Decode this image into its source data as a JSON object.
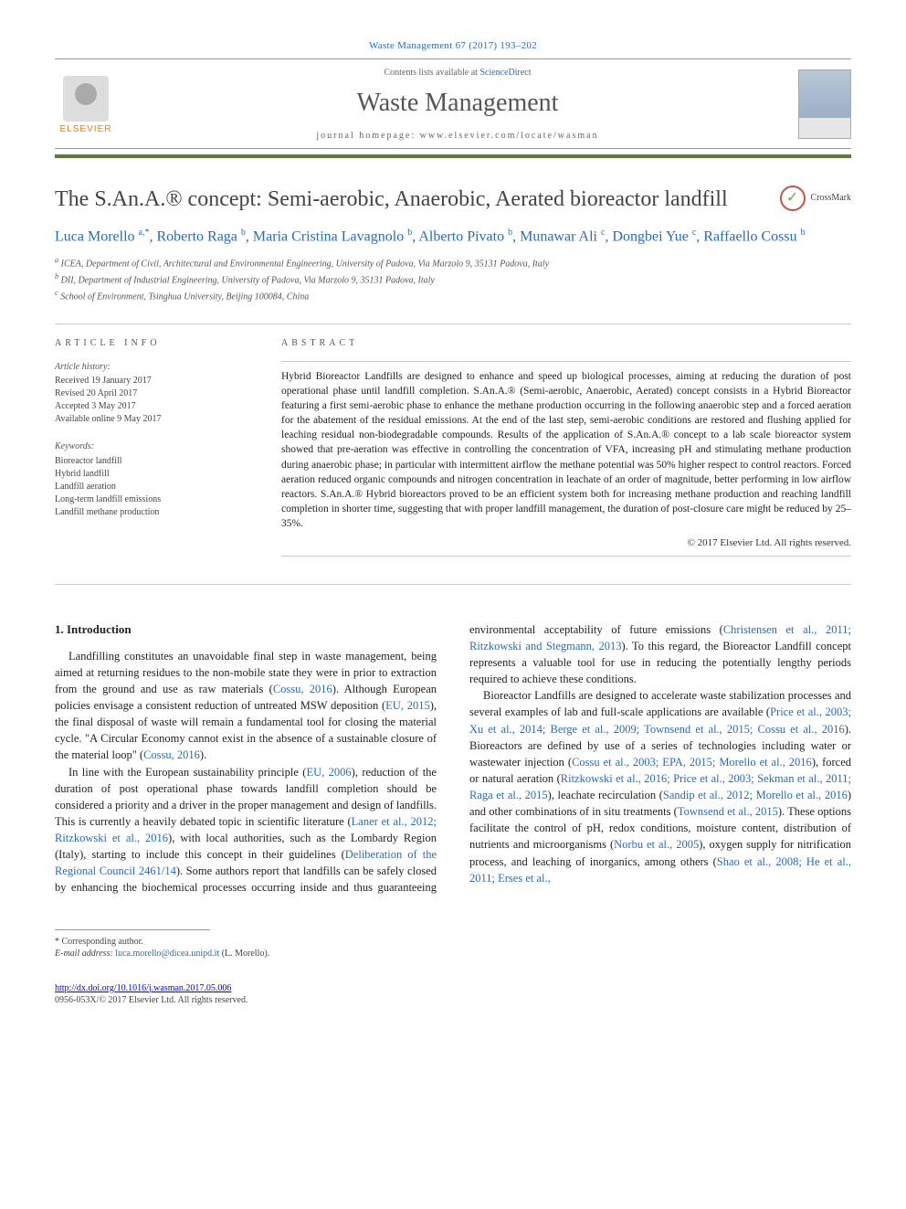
{
  "colors": {
    "link": "#2a6bb8",
    "accent_bar": "#5a7a3a",
    "elsevier_orange": "#ec7a08",
    "text_body": "#222222",
    "text_muted": "#666666",
    "rule_gray": "#cccccc"
  },
  "typography": {
    "body_font": "Georgia, serif",
    "title_fontsize_pt": 18,
    "journal_name_fontsize_pt": 21,
    "authors_fontsize_pt": 12,
    "abstract_fontsize_pt": 9,
    "body_fontsize_pt": 9.5
  },
  "header": {
    "citation": "Waste Management 67 (2017) 193–202",
    "contents_line_pre": "Contents lists available at ",
    "contents_line_link": "ScienceDirect",
    "journal_name": "Waste Management",
    "homepage_label": "journal homepage: www.elsevier.com/locate/wasman",
    "elsevier_label": "ELSEVIER"
  },
  "title": "The S.An.A.® concept: Semi-aerobic, Anaerobic, Aerated bioreactor landfill",
  "crossmark_label": "CrossMark",
  "authors_html": "Luca Morello <sup>a,*</sup>, Roberto Raga <sup>b</sup>, Maria Cristina Lavagnolo <sup>b</sup>, Alberto Pivato <sup>b</sup>, Munawar Ali <sup>c</sup>, Dongbei Yue <sup>c</sup>, Raffaello Cossu <sup>b</sup>",
  "affiliations": [
    "a ICEA, Department of Civil, Architectural and Environmental Engineering, University of Padova, Via Marzolo 9, 35131 Padova, Italy",
    "b DII, Department of Industrial Engineering, University of Padova, Via Marzolo 9, 35131 Padova, Italy",
    "c School of Environment, Tsinghua University, Beijing 100084, China"
  ],
  "article_info": {
    "heading": "ARTICLE INFO",
    "history_heading": "Article history:",
    "history_lines": [
      "Received 19 January 2017",
      "Revised 20 April 2017",
      "Accepted 3 May 2017",
      "Available online 9 May 2017"
    ],
    "keywords_heading": "Keywords:",
    "keywords": [
      "Bioreactor landfill",
      "Hybrid landfill",
      "Landfill aeration",
      "Long-term landfill emissions",
      "Landfill methane production"
    ]
  },
  "abstract": {
    "heading": "ABSTRACT",
    "text": "Hybrid Bioreactor Landfills are designed to enhance and speed up biological processes, aiming at reducing the duration of post operational phase until landfill completion. S.An.A.® (Semi-aerobic, Anaerobic, Aerated) concept consists in a Hybrid Bioreactor featuring a first semi-aerobic phase to enhance the methane production occurring in the following anaerobic step and a forced aeration for the abatement of the residual emissions. At the end of the last step, semi-aerobic conditions are restored and flushing applied for leaching residual non-biodegradable compounds. Results of the application of S.An.A.® concept to a lab scale bioreactor system showed that pre-aeration was effective in controlling the concentration of VFA, increasing pH and stimulating methane production during anaerobic phase; in particular with intermittent airflow the methane potential was 50% higher respect to control reactors. Forced aeration reduced organic compounds and nitrogen concentration in leachate of an order of magnitude, better performing in low airflow reactors. S.An.A.® Hybrid bioreactors proved to be an efficient system both for increasing methane production and reaching landfill completion in shorter time, suggesting that with proper landfill management, the duration of post-closure care might be reduced by 25–35%.",
    "copyright": "© 2017 Elsevier Ltd. All rights reserved."
  },
  "intro": {
    "heading": "1. Introduction",
    "p1_a": "Landfilling constitutes an unavoidable final step in waste management, being aimed at returning residues to the non-mobile state they were in prior to extraction from the ground and use as raw materials (",
    "p1_l1": "Cossu, 2016",
    "p1_b": "). Although European policies envisage a consistent reduction of untreated MSW deposition (",
    "p1_l2": "EU, 2015",
    "p1_c": "), the final disposal of waste will remain a fundamental tool for closing the material cycle. \"A Circular Economy cannot exist in the absence of a sustainable closure of the material loop\" (",
    "p1_l3": "Cossu, 2016",
    "p1_d": ").",
    "p2_a": "In line with the European sustainability principle (",
    "p2_l1": "EU, 2006",
    "p2_b": "), reduction of the duration of post operational phase towards landfill completion should be considered a priority and a driver in the proper management and design of landfills. This is currently a heavily debated topic in scientific literature (",
    "p2_l2": "Laner et al., 2012; Ritzkowski et al., 2016",
    "p2_c": "), with local authorities, such as the Lombardy Region (Italy), starting to include this concept in their guidelines (",
    "p2_l3": "Deliberation of the Regional Council 2461/14",
    "p2_d": "). Some authors report that landfills can be safely closed by enhancing the biochemical processes occurring inside and thus guaranteeing environmental acceptability of future emissions (",
    "p2_l4": "Christensen et al., 2011; Ritzkowski and Stegmann, 2013",
    "p2_e": "). To this regard, the Bioreactor Landfill concept represents a valuable tool for use in reducing the potentially lengthy periods required to achieve these conditions.",
    "p3_a": "Bioreactor Landfills are designed to accelerate waste stabilization processes and several examples of lab and full-scale applications are available (",
    "p3_l1": "Price et al., 2003; Xu et al., 2014; Berge et al., 2009; Townsend et al., 2015; Cossu et al., 2016",
    "p3_b": "). Bioreactors are defined by use of a series of technologies including water or wastewater injection (",
    "p3_l2": "Cossu et al., 2003; EPA, 2015; Morello et al., 2016",
    "p3_c": "), forced or natural aeration (",
    "p3_l3": "Ritzkowski et al., 2016; Price et al., 2003; Sekman et al., 2011; Raga et al., 2015",
    "p3_d": "), leachate recirculation (",
    "p3_l4": "Sandip et al., 2012; Morello et al., 2016",
    "p3_e": ") and other combinations of in situ treatments (",
    "p3_l5": "Townsend et al., 2015",
    "p3_f": "). These options facilitate the control of pH, redox conditions, moisture content, distribution of nutrients and microorganisms (",
    "p3_l6": "Norbu et al., 2005",
    "p3_g": "), oxygen supply for nitrification process, and leaching of inorganics, among others (",
    "p3_l7": "Shao et al., 2008; He et al., 2011; Erses et al.,"
  },
  "footer": {
    "corr_label": "* Corresponding author.",
    "email_label": "E-mail address: ",
    "email": "luca.morello@dicea.unipd.it",
    "email_suffix": " (L. Morello).",
    "doi": "http://dx.doi.org/10.1016/j.wasman.2017.05.006",
    "copyright_foot": "0956-053X/© 2017 Elsevier Ltd. All rights reserved."
  }
}
